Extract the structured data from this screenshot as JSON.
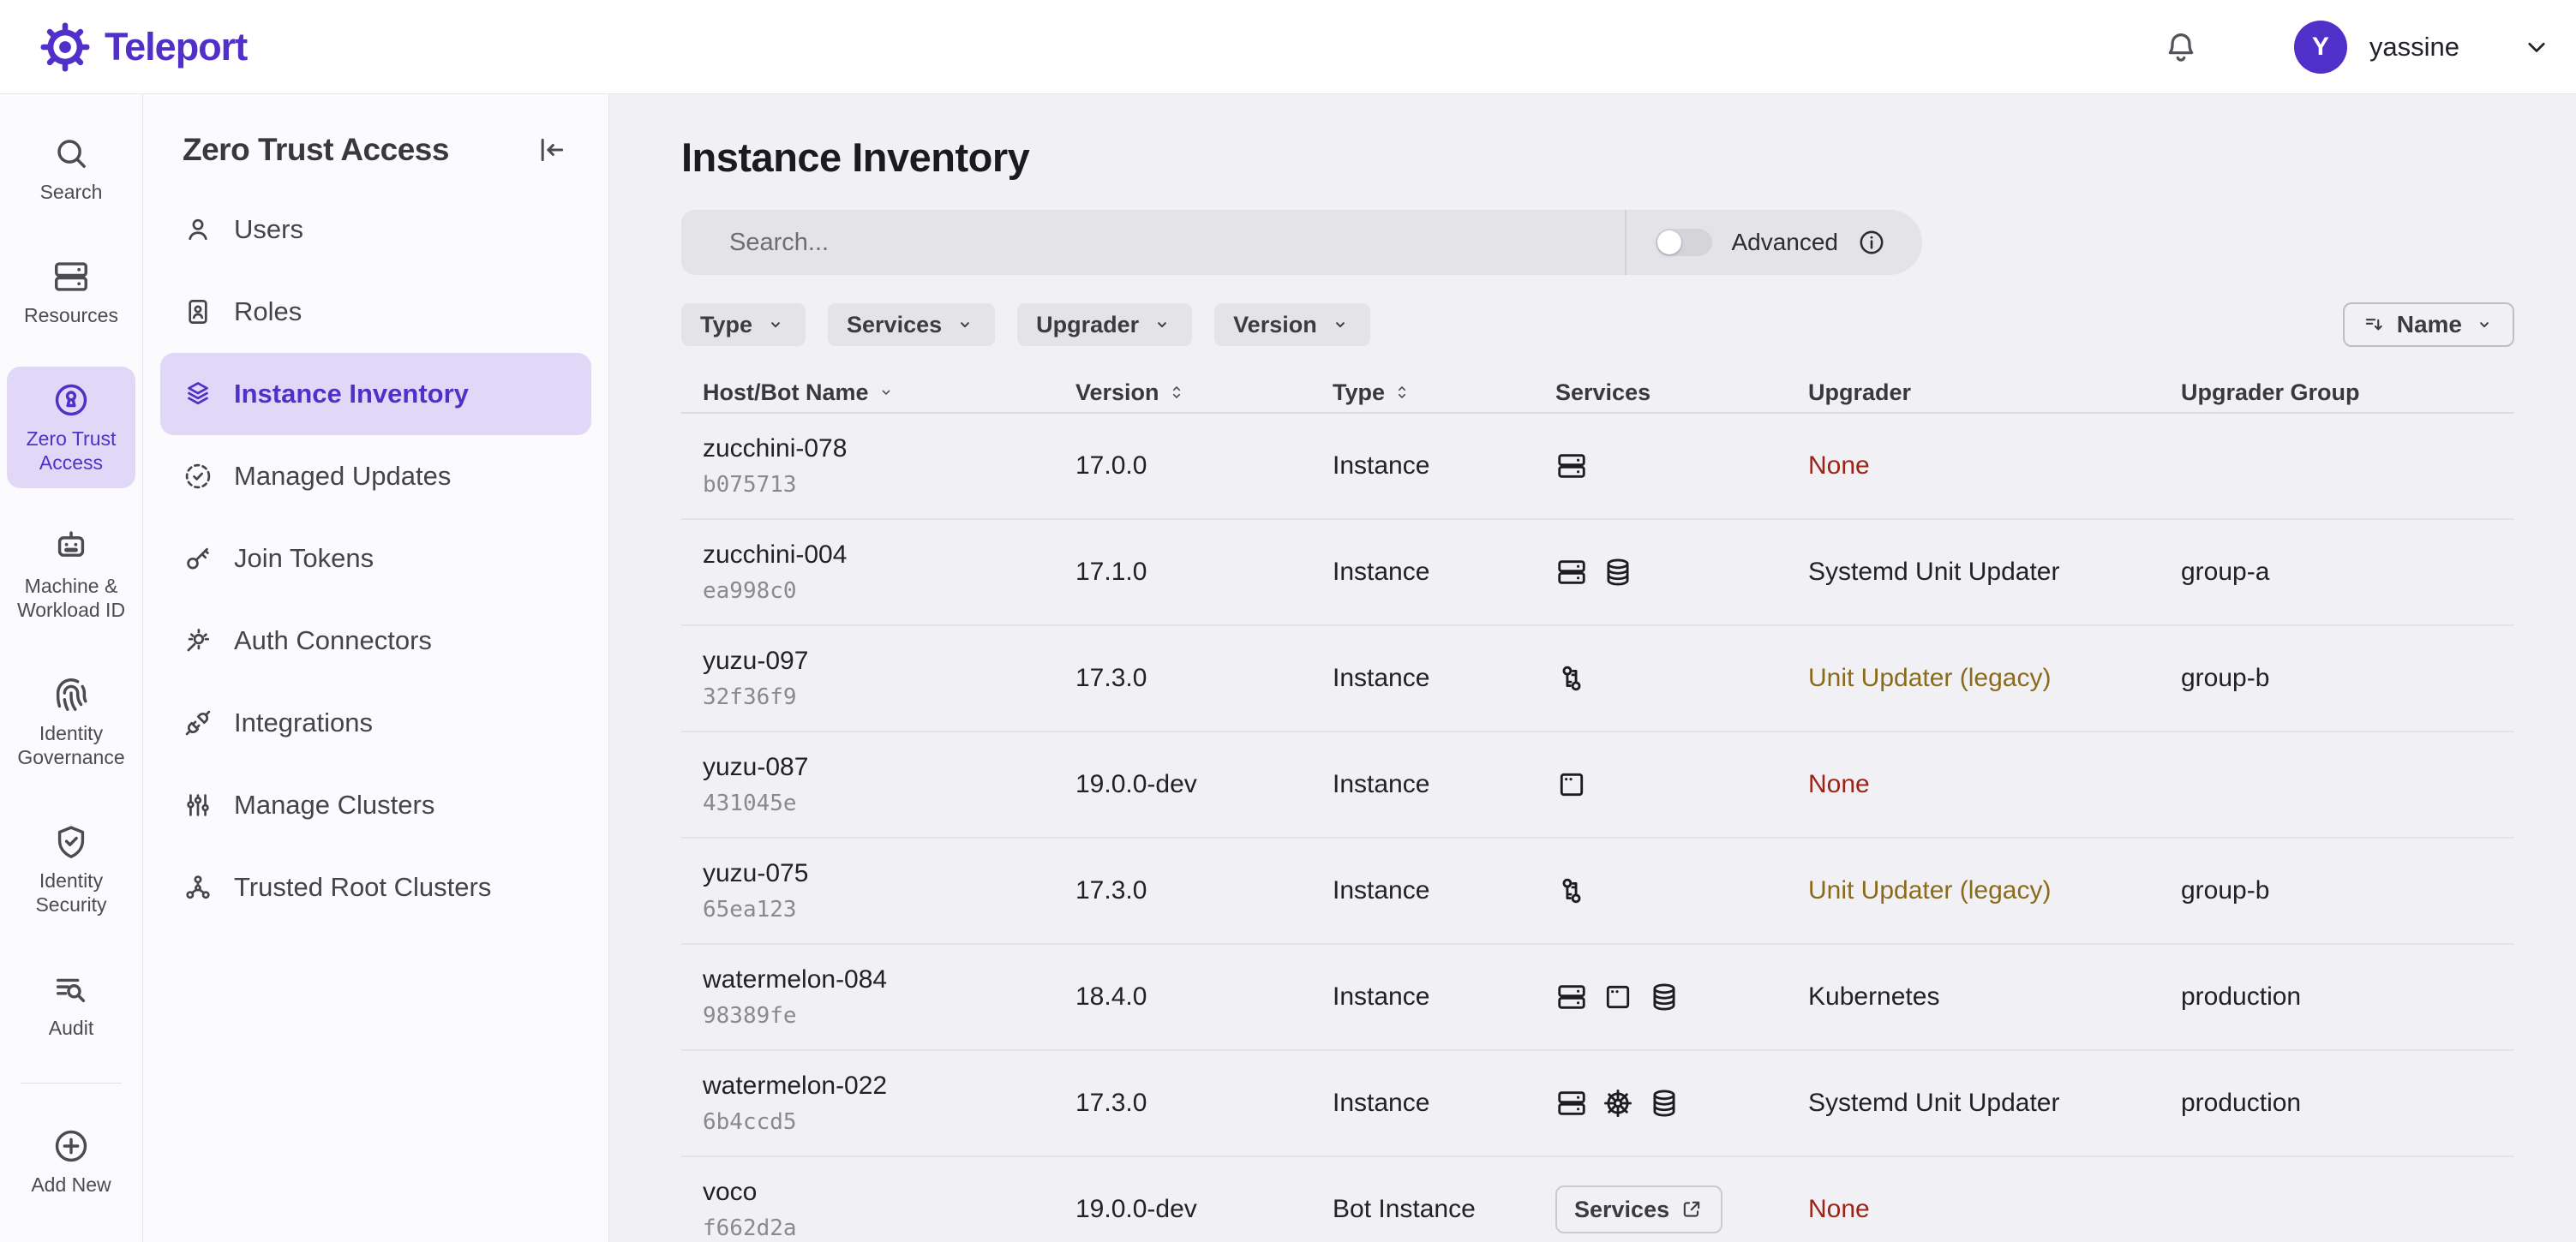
{
  "colors": {
    "accent": "#512FC9",
    "active_bg": "#E0D8F6",
    "danger": "#9B2318",
    "warning": "#8A6A1B"
  },
  "topbar": {
    "brand": "Teleport",
    "user": {
      "initial": "Y",
      "name": "yassine"
    }
  },
  "rail": {
    "items": [
      {
        "label": "Search",
        "icon": "search-icon"
      },
      {
        "label": "Resources",
        "icon": "server-icon"
      },
      {
        "label": "Zero Trust Access",
        "icon": "lock-circle-icon",
        "active": true
      },
      {
        "label": "Machine & Workload ID",
        "icon": "robot-icon"
      },
      {
        "label": "Identity Governance",
        "icon": "fingerprint-icon"
      },
      {
        "label": "Identity Security",
        "icon": "shield-check-icon"
      },
      {
        "label": "Audit",
        "icon": "list-search-icon"
      },
      {
        "label": "Add New",
        "icon": "plus-circle-icon",
        "section": "bottom"
      }
    ]
  },
  "sidebar": {
    "title": "Zero Trust Access",
    "items": [
      {
        "label": "Users",
        "icon": "user-icon"
      },
      {
        "label": "Roles",
        "icon": "id-card-icon"
      },
      {
        "label": "Instance Inventory",
        "icon": "layers-icon",
        "active": true
      },
      {
        "label": "Managed Updates",
        "icon": "circle-check-dashed-icon"
      },
      {
        "label": "Join Tokens",
        "icon": "key-icon"
      },
      {
        "label": "Auth Connectors",
        "icon": "auth-connector-icon"
      },
      {
        "label": "Integrations",
        "icon": "plug-icon"
      },
      {
        "label": "Manage Clusters",
        "icon": "sliders-icon"
      },
      {
        "label": "Trusted Root Clusters",
        "icon": "network-icon"
      }
    ]
  },
  "main": {
    "title": "Instance Inventory",
    "search": {
      "placeholder": "Search..."
    },
    "advanced": {
      "label": "Advanced",
      "enabled": false
    },
    "filters": [
      {
        "label": "Type"
      },
      {
        "label": "Services"
      },
      {
        "label": "Upgrader"
      },
      {
        "label": "Version"
      }
    ],
    "sort_button": {
      "label": "Name"
    },
    "table": {
      "columns": [
        {
          "label": "Host/Bot Name",
          "sort": "desc"
        },
        {
          "label": "Version",
          "sort": "both"
        },
        {
          "label": "Type",
          "sort": "both"
        },
        {
          "label": "Services",
          "sort": null
        },
        {
          "label": "Upgrader",
          "sort": null
        },
        {
          "label": "Upgrader Group",
          "sort": null
        }
      ],
      "rows": [
        {
          "name": "zucchini-078",
          "id": "b075713",
          "version": "17.0.0",
          "type": "Instance",
          "services": [
            "server-icon"
          ],
          "upgrader": {
            "text": "None",
            "variant": "danger"
          },
          "group": ""
        },
        {
          "name": "zucchini-004",
          "id": "ea998c0",
          "version": "17.1.0",
          "type": "Instance",
          "services": [
            "server-icon",
            "database-icon"
          ],
          "upgrader": {
            "text": "Systemd Unit Updater",
            "variant": "default"
          },
          "group": "group-a"
        },
        {
          "name": "yuzu-097",
          "id": "32f36f9",
          "version": "17.3.0",
          "type": "Instance",
          "services": [
            "keys-icon"
          ],
          "upgrader": {
            "text": "Unit Updater (legacy)",
            "variant": "warning"
          },
          "group": "group-b"
        },
        {
          "name": "yuzu-087",
          "id": "431045e",
          "version": "19.0.0-dev",
          "type": "Instance",
          "services": [
            "app-window-icon"
          ],
          "upgrader": {
            "text": "None",
            "variant": "danger"
          },
          "group": ""
        },
        {
          "name": "yuzu-075",
          "id": "65ea123",
          "version": "17.3.0",
          "type": "Instance",
          "services": [
            "keys-icon"
          ],
          "upgrader": {
            "text": "Unit Updater (legacy)",
            "variant": "warning"
          },
          "group": "group-b"
        },
        {
          "name": "watermelon-084",
          "id": "98389fe",
          "version": "18.4.0",
          "type": "Instance",
          "services": [
            "server-icon",
            "app-window-icon",
            "database-icon"
          ],
          "upgrader": {
            "text": "Kubernetes",
            "variant": "default"
          },
          "group": "production"
        },
        {
          "name": "watermelon-022",
          "id": "6b4ccd5",
          "version": "17.3.0",
          "type": "Instance",
          "services": [
            "server-icon",
            "kubernetes-icon",
            "database-icon"
          ],
          "upgrader": {
            "text": "Systemd Unit Updater",
            "variant": "default"
          },
          "group": "production"
        },
        {
          "name": "voco",
          "id": "f662d2a",
          "version": "19.0.0-dev",
          "type": "Bot Instance",
          "services_button": {
            "label": "Services",
            "icon": "external-link-icon"
          },
          "upgrader": {
            "text": "None",
            "variant": "danger"
          },
          "group": ""
        }
      ]
    }
  }
}
